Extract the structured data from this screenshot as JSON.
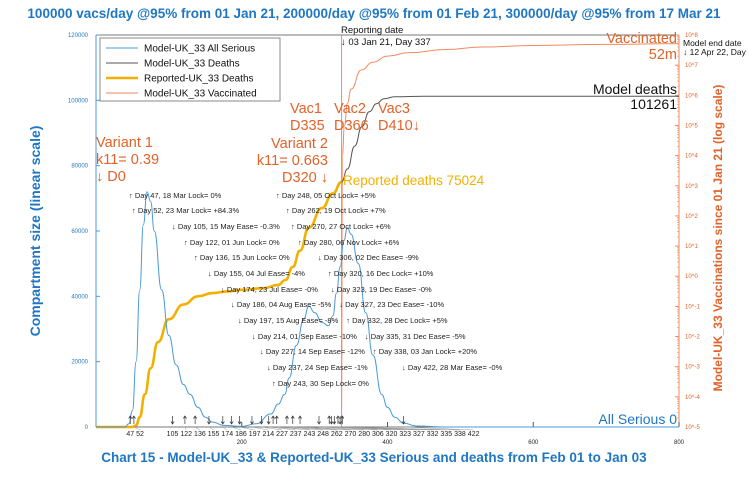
{
  "title": "100000 vacs/day @95% from 01 Jan 21, 200000/day @95% from 01 Feb 21, 300000/day @95% from 17 Mar 21",
  "chart_data": {
    "type": "line",
    "title": "100000 vacs/day @95% from 01 Jan 21, 200000/day @95% from 01 Feb 21, 300000/day @95% from 17 Mar 21",
    "subtitle": "Chart 15 - Model-UK_33 & Reported-UK_33 Serious and deaths from Feb 01 to Jan 03",
    "ylabel": "Compartment size (linear scale)",
    "y2label": "Model-UK_33 Vaccinations since 01 Jan 21 (log scale)",
    "xlim": [
      0,
      800
    ],
    "ylim": [
      0,
      120000
    ],
    "y2lim": [
      1e-05,
      100000000.0
    ],
    "y2scale": "log",
    "xticks": [
      200,
      400,
      600,
      800
    ],
    "yticks": [
      0,
      20000,
      40000,
      60000,
      80000,
      100000,
      120000
    ],
    "y2ticks": [
      "10^-5",
      "10^-4",
      "10^-3",
      "10^-2",
      "10^-1",
      "10^0",
      "10^1",
      "10^2",
      "10^3",
      "10^4",
      "10^5",
      "10^6",
      "10^7",
      "10^8"
    ],
    "grid": false,
    "legend_position": "top-left",
    "colors": {
      "serious": "#4a9ad8",
      "model_deaths": "#555555",
      "reported": "#f2b000",
      "vaccinated": "#f08a60",
      "annot": "#e2622a"
    },
    "series": [
      {
        "name": "Model-UK_33 All Serious",
        "axis": "left",
        "x": [
          0,
          40,
          45,
          50,
          55,
          60,
          65,
          70,
          75,
          80,
          90,
          100,
          110,
          120,
          129,
          140,
          150,
          160,
          175,
          200,
          220,
          240,
          250,
          259,
          265,
          275,
          285,
          292,
          300,
          310,
          319,
          325,
          330,
          335,
          340,
          345,
          350,
          360,
          370,
          380,
          392,
          400,
          410,
          422,
          440,
          480,
          800
        ],
        "y": [
          0,
          0,
          1000,
          5000,
          20000,
          42000,
          62000,
          72000,
          69000,
          60000,
          42000,
          28000,
          19000,
          13000,
          10000,
          6000,
          3000,
          1500,
          500,
          200,
          1000,
          4000,
          7000,
          10000,
          15000,
          25000,
          33000,
          37000,
          35000,
          32000,
          31000,
          34000,
          41000,
          49000,
          57000,
          61000,
          59000,
          50000,
          35000,
          22000,
          10000,
          6000,
          3000,
          1200,
          300,
          0,
          0
        ]
      },
      {
        "name": "Model-UK_33 Deaths",
        "axis": "left",
        "x": [
          337,
          345,
          355,
          365,
          375,
          385,
          395,
          410,
          450,
          800
        ],
        "y": [
          75024,
          79000,
          86000,
          92000,
          96500,
          99000,
          100500,
          101100,
          101261,
          101261
        ]
      },
      {
        "name": "Reported-UK_33 Deaths",
        "axis": "left",
        "x": [
          0,
          50,
          55,
          60,
          67,
          75,
          85,
          100,
          120,
          140,
          160,
          180,
          200,
          230,
          250,
          260,
          270,
          280,
          292,
          310,
          325,
          337
        ],
        "y": [
          0,
          0,
          500,
          3000,
          10000,
          18000,
          26000,
          33000,
          37500,
          40000,
          41000,
          41500,
          42000,
          42500,
          43500,
          45000,
          49000,
          54000,
          61000,
          67000,
          71500,
          75024
        ]
      },
      {
        "name": "Model-UK_33 Vaccinated",
        "axis": "right",
        "x": [
          337,
          338,
          341,
          345,
          350,
          364,
          380,
          400,
          430,
          480,
          530,
          600,
          700,
          800
        ],
        "y": [
          1e-05,
          10000,
          100000,
          550000,
          1600000,
          6900000,
          12600000,
          20000000,
          26000000,
          33000000,
          40000000,
          45000000,
          49000000,
          52000000
        ]
      }
    ],
    "annotations": [
      {
        "day": 47,
        "dir": "up",
        "text": "Day 47, 18 Mar Lock= 0%"
      },
      {
        "day": 52,
        "dir": "up",
        "text": "Day 52, 23 Mar Lock= +84.3%"
      },
      {
        "day": 105,
        "dir": "down",
        "text": "Day 105, 15 May Ease= -0.3%"
      },
      {
        "day": 122,
        "dir": "up",
        "text": "Day 122, 01 Jun Lock= 0%"
      },
      {
        "day": 136,
        "dir": "up",
        "text": "Day 136, 15 Jun Lock= 0%"
      },
      {
        "day": 155,
        "dir": "down",
        "text": "Day 155, 04 Jul Ease= -4%"
      },
      {
        "day": 174,
        "dir": "down",
        "text": "Day 174, 23 Jul Ease= -0%"
      },
      {
        "day": 186,
        "dir": "down",
        "text": "Day 186, 04 Aug Ease= -5%"
      },
      {
        "day": 197,
        "dir": "down",
        "text": "Day 197, 15 Aug Ease= -8%"
      },
      {
        "day": 214,
        "dir": "down",
        "text": "Day 214, 01 Sep Ease= -10%"
      },
      {
        "day": 227,
        "dir": "down",
        "text": "Day 227, 14 Sep Ease= -12%"
      },
      {
        "day": 237,
        "dir": "down",
        "text": "Day 237, 24 Sep Ease= -1%"
      },
      {
        "day": 243,
        "dir": "up",
        "text": "Day 243, 30 Sep Lock= 0%"
      },
      {
        "day": 248,
        "dir": "up",
        "text": "Day 248, 05 Oct Lock= +5%"
      },
      {
        "day": 262,
        "dir": "up",
        "text": "Day 262, 19 Oct Lock= +7%"
      },
      {
        "day": 270,
        "dir": "up",
        "text": "Day 270, 27 Oct Lock= +6%"
      },
      {
        "day": 280,
        "dir": "up",
        "text": "Day 280, 06 Nov Lock= +6%"
      },
      {
        "day": 306,
        "dir": "down",
        "text": "Day 306, 02 Dec Ease= -9%"
      },
      {
        "day": 320,
        "dir": "up",
        "text": "Day 320, 16 Dec Lock= +10%"
      },
      {
        "day": 323,
        "dir": "down",
        "text": "Day 323, 19 Dec Ease= -0%"
      },
      {
        "day": 327,
        "dir": "down",
        "text": "Day 327, 23 Dec Ease= -10%"
      },
      {
        "day": 332,
        "dir": "up",
        "text": "Day 332, 28 Dec Lock= +5%"
      },
      {
        "day": 335,
        "dir": "down",
        "text": "Day 335, 31 Dec Ease= -5%"
      },
      {
        "day": 338,
        "dir": "up",
        "text": "Day 338, 03 Jan Lock= +20%"
      },
      {
        "day": 422,
        "dir": "down",
        "text": "Day 422, 28 Mar Ease= -0%"
      }
    ],
    "labels": {
      "variant1": [
        "Variant 1",
        "k11= 0.39",
        "↓ D0"
      ],
      "variant2": [
        "Variant 2",
        "k11= 0.663",
        "D320 ↓"
      ],
      "vac_names": [
        "Vac1",
        "Vac2",
        "Vac3"
      ],
      "vac_days": [
        "D335",
        "D366",
        "D410↓"
      ],
      "reported": "Reported deaths 75024",
      "reporting_date": [
        "Reporting date",
        "↓ 03 Jan 21, Day 337"
      ],
      "model_end": [
        "Model end date",
        "↓ 12 Apr 22, Day"
      ],
      "vaccinated": [
        "Vaccinated",
        "52m"
      ],
      "model_deaths": [
        "Model deaths",
        "101261"
      ],
      "all_serious": "All Serious 0"
    }
  }
}
